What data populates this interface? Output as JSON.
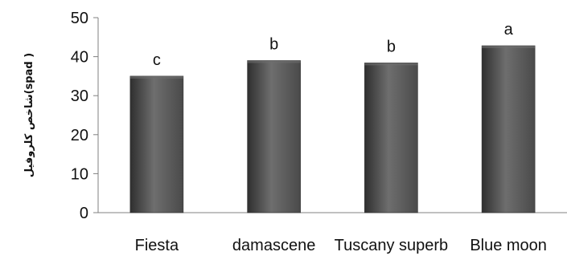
{
  "chart_data": {
    "type": "bar",
    "categories": [
      "Fiesta",
      "damascene",
      "Tuscany superb",
      "Blue moon"
    ],
    "values": [
      35,
      39,
      38.4,
      42.8
    ],
    "annotations": [
      "c",
      "b",
      "b",
      "a"
    ],
    "ylabel": "شاخص کلروفیل(spad )",
    "xlabel": "",
    "title": "",
    "ylim": [
      0,
      50
    ],
    "yticks": [
      0,
      10,
      20,
      30,
      40,
      50
    ],
    "grid": false,
    "colors": {
      "bar": "#4a4a4a",
      "bar_highlight": "#6e6e6e",
      "bar_shadow": "#2f2f2f",
      "axis": "#808080",
      "text": "#111111"
    }
  }
}
